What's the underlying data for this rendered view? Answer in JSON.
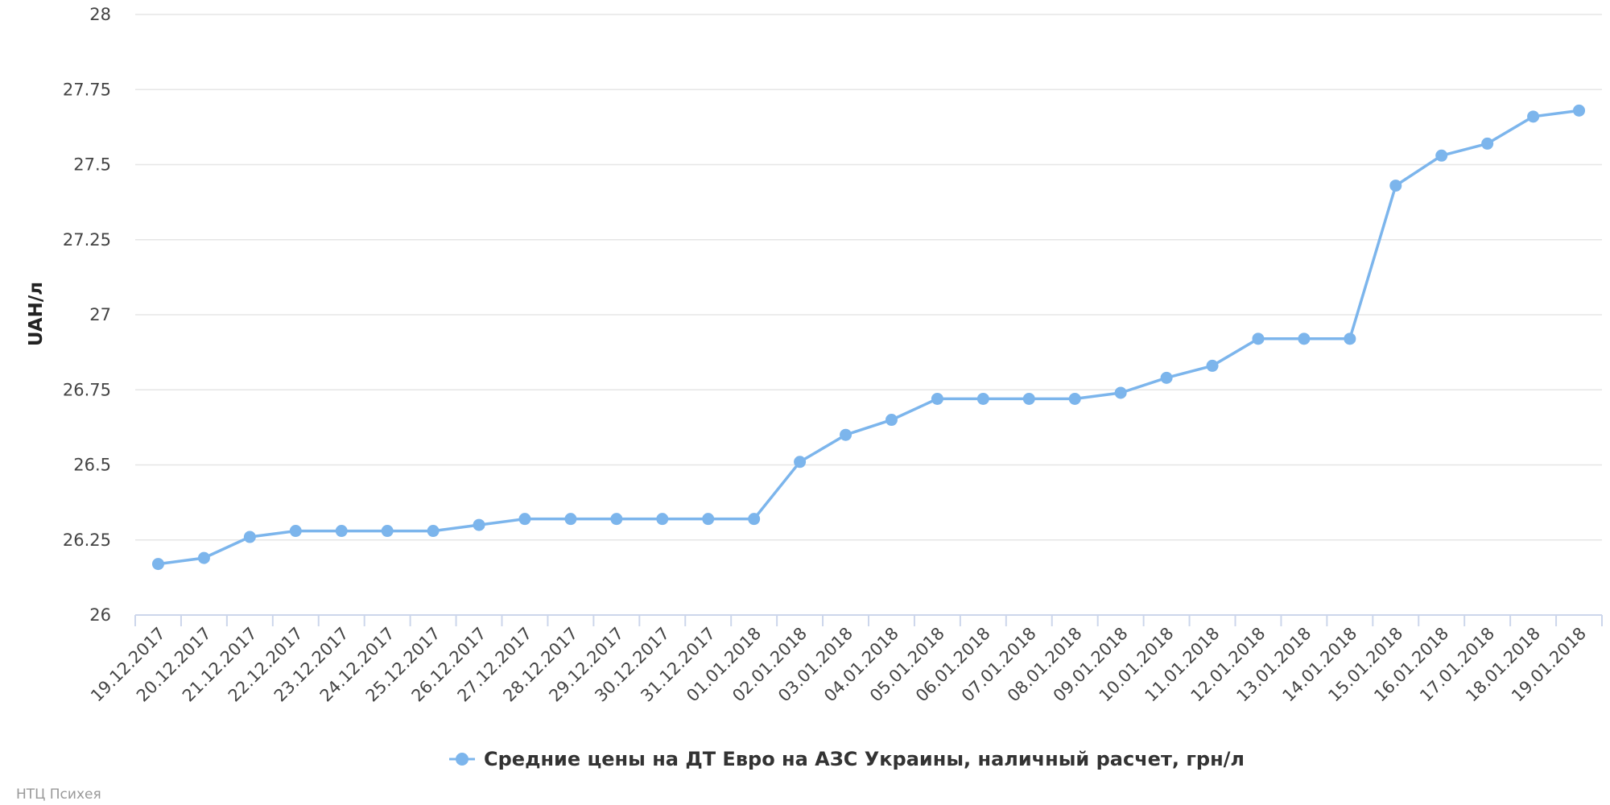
{
  "chart_data": {
    "type": "line",
    "title": "",
    "xlabel": "",
    "ylabel": "UAH/л",
    "ylim": [
      26,
      28
    ],
    "yticks": [
      "26",
      "26.25",
      "26.5",
      "26.75",
      "27",
      "27.25",
      "27.5",
      "27.75",
      "28"
    ],
    "grid": true,
    "legend_position": "bottom-center",
    "categories": [
      "19.12.2017",
      "20.12.2017",
      "21.12.2017",
      "22.12.2017",
      "23.12.2017",
      "24.12.2017",
      "25.12.2017",
      "26.12.2017",
      "27.12.2017",
      "28.12.2017",
      "29.12.2017",
      "30.12.2017",
      "31.12.2017",
      "01.01.2018",
      "02.01.2018",
      "03.01.2018",
      "04.01.2018",
      "05.01.2018",
      "06.01.2018",
      "07.01.2018",
      "08.01.2018",
      "09.01.2018",
      "10.01.2018",
      "11.01.2018",
      "12.01.2018",
      "13.01.2018",
      "14.01.2018",
      "15.01.2018",
      "16.01.2018",
      "17.01.2018",
      "18.01.2018",
      "19.01.2018"
    ],
    "series": [
      {
        "name": "Средние цены на ДТ Евро на АЗС Украины, наличный расчет, грн/л",
        "color": "#7cb5ec",
        "values": [
          26.17,
          26.19,
          26.26,
          26.28,
          26.28,
          26.28,
          26.28,
          26.3,
          26.32,
          26.32,
          26.32,
          26.32,
          26.32,
          26.32,
          26.51,
          26.6,
          26.65,
          26.72,
          26.72,
          26.72,
          26.72,
          26.74,
          26.79,
          26.83,
          26.92,
          26.92,
          26.92,
          27.43,
          27.53,
          27.57,
          27.66,
          27.68
        ]
      }
    ]
  },
  "credit": "НТЦ Психея",
  "colors": {
    "series": "#7cb5ec",
    "grid": "#e6e6e6",
    "axis": "#ccd6eb"
  }
}
